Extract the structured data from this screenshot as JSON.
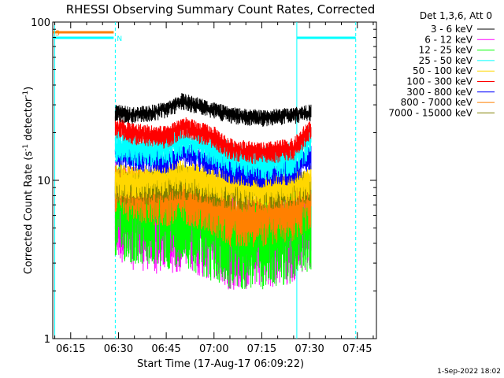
{
  "chart_data": {
    "type": "line",
    "title": "RHESSI Observing Summary Count Rates, Corrected",
    "xlabel": "Start Time (17-Aug-17 06:09:22)",
    "ylabel": "Corrected Count Rate (s⁻¹ detector⁻¹)",
    "ylabel_main": "Corrected Count Rate (s",
    "ylabel_mid": " detector",
    "ylabel_end": ")",
    "ylabel_sup": "-1",
    "y_scale": "log",
    "ylim": [
      1,
      100
    ],
    "xlim": [
      "06:09:22",
      "07:51:00"
    ],
    "x_ticks": [
      "06:15",
      "06:30",
      "06:45",
      "07:00",
      "07:15",
      "07:30",
      "07:45"
    ],
    "y_ticks": [
      "1",
      "10",
      "100"
    ],
    "legend_header": "Det 1,3,6, Att 0",
    "legend_position": "top-right",
    "footer": "1-Sep-2022 18:02",
    "flags": [
      {
        "label": "S",
        "start": "06:09:22",
        "end": "06:28:30",
        "color": "#ff7f00"
      },
      {
        "label": "N",
        "start": "06:09:22",
        "end": "06:28:30",
        "color": "#00ffff"
      },
      {
        "label": "",
        "start": "07:26:00",
        "end": "07:44:30",
        "color": "#00ffff"
      }
    ],
    "vlines": [
      {
        "time": "06:10:00",
        "color": "#00ffff",
        "style": "solid"
      },
      {
        "time": "06:29:00",
        "color": "#00ffff",
        "style": "dashed"
      },
      {
        "time": "07:26:00",
        "color": "#00ffff",
        "style": "solid"
      },
      {
        "time": "07:44:30",
        "color": "#00ffff",
        "style": "dashed"
      }
    ],
    "data_window": [
      "06:29:00",
      "07:30:30"
    ],
    "segment_times": [
      "06:29",
      "06:35",
      "06:45",
      "06:50",
      "07:00",
      "07:05",
      "07:15",
      "07:25",
      "07:30"
    ],
    "series": [
      {
        "name": "3 - 6 keV",
        "color": "#000000",
        "values": [
          27,
          26,
          28,
          32,
          28,
          26,
          25,
          26,
          27
        ]
      },
      {
        "name": "6 - 12 keV",
        "color": "#ff00ff",
        "values": [
          7,
          6,
          5.5,
          6,
          5,
          4.5,
          4.5,
          5,
          6
        ]
      },
      {
        "name": "12 - 25 keV",
        "color": "#00ff00",
        "values": [
          7,
          6.5,
          6,
          6.5,
          5,
          4.5,
          4.5,
          5,
          6
        ]
      },
      {
        "name": "25 - 50 keV",
        "color": "#00ffff",
        "values": [
          17,
          16,
          16,
          18,
          16,
          14,
          13,
          14,
          18
        ]
      },
      {
        "name": "50 - 100 keV",
        "color": "#ffd700",
        "values": [
          10,
          10,
          10.5,
          11,
          10,
          9.5,
          9,
          9.5,
          10
        ]
      },
      {
        "name": "100 - 300 keV",
        "color": "#ff0000",
        "values": [
          22,
          20,
          19,
          22,
          19,
          16,
          15,
          16,
          21
        ]
      },
      {
        "name": "300 - 800 keV",
        "color": "#0000ff",
        "values": [
          15,
          14,
          13.5,
          15,
          13,
          11.5,
          11,
          11.5,
          14
        ]
      },
      {
        "name": "800 - 7000 keV",
        "color": "#ff8000",
        "values": [
          9,
          8.5,
          8,
          8.5,
          7,
          6,
          6,
          6.5,
          7.5
        ]
      },
      {
        "name": "7000 - 15000 keV",
        "color": "#808000",
        "values": [
          9.5,
          9,
          9.5,
          10,
          9,
          8.5,
          8.5,
          9,
          9.5
        ]
      }
    ]
  }
}
